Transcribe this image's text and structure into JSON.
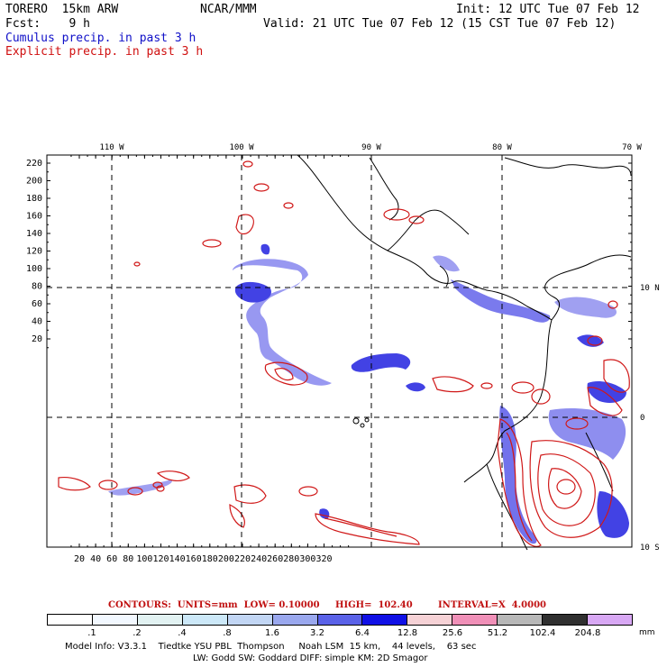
{
  "header": {
    "model": "TORERO  15km ARW",
    "org": "NCAR/MMM",
    "init": "Init: 12 UTC Tue 07 Feb 12",
    "fcst": "Fcst:    9 h",
    "valid": "Valid: 21 UTC Tue 07 Feb 12 (15 CST Tue 07 Feb 12)",
    "line_blue": "Cumulus precip. in past 3 h",
    "line_red": "Explicit precip. in past 3 h"
  },
  "colors": {
    "shade_blue": "#2020e0",
    "contour_red": "#d01818",
    "coast": "#000000",
    "grid": "#000000"
  },
  "axes": {
    "top_lon_labels": [
      "110 W",
      "100 W",
      "90 W",
      "80 W",
      "70 W"
    ],
    "right_lat_labels": [
      "10 N",
      "0",
      "10 S"
    ],
    "y_ticks": [
      "220",
      "200",
      "180",
      "160",
      "140",
      "120",
      "100",
      "80",
      "60",
      "40",
      "20"
    ],
    "x_ticks": [
      "20",
      "40",
      "60",
      "80",
      "100",
      "120",
      "140",
      "160",
      "180",
      "200",
      "220",
      "240",
      "260",
      "280",
      "300",
      "320"
    ]
  },
  "contours_info": {
    "units": "CONTOURS:  UNITS=mm  LOW= 0.10000",
    "high": "HIGH=  102.40",
    "interval": "INTERVAL=X  4.0000"
  },
  "colorbar": {
    "labels": [
      ".1",
      ".2",
      ".4",
      ".8",
      "1.6",
      "3.2",
      "6.4",
      "12.8",
      "25.6",
      "51.2",
      "102.4",
      "204.8"
    ],
    "unit": "mm",
    "colors": [
      "#ffffff",
      "#f2f8ff",
      "#e2f2f2",
      "#cce8f8",
      "#c2d6f4",
      "#9aa8ee",
      "#5a62e8",
      "#1010e6",
      "#f6d2d6",
      "#f090b8",
      "#b8b8b8",
      "#303030",
      "#d8a8f4"
    ]
  },
  "footer": {
    "line1": "Model Info: V3.3.1    Tiedtke YSU PBL  Thompson     Noah LSM  15 km,    44 levels,    63 sec",
    "line2": "LW: Godd SW: Goddard DIFF: simple KM: 2D Smagor"
  }
}
